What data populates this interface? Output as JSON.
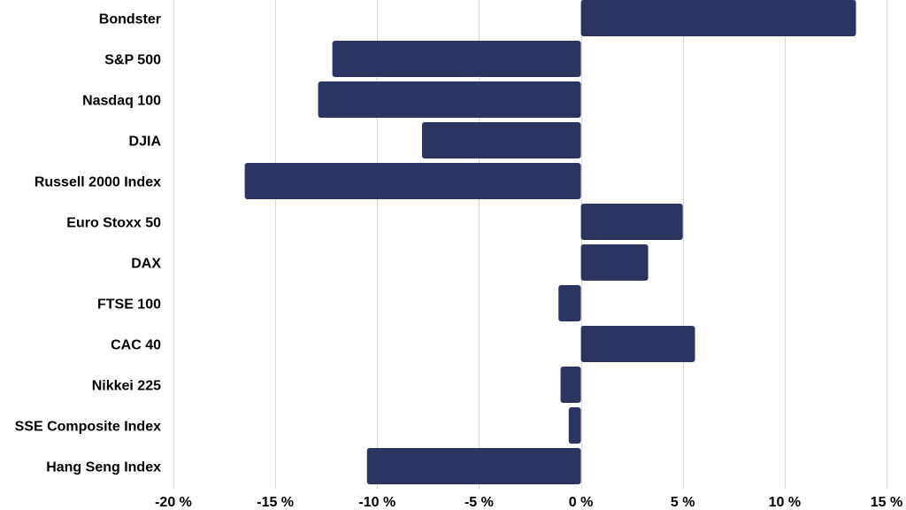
{
  "chart_data": {
    "type": "bar",
    "orientation": "horizontal",
    "categories": [
      "Bondster",
      "S&P 500",
      "Nasdaq 100",
      "DJIA",
      "Russell 2000 Index",
      "Euro Stoxx 50",
      "DAX",
      "FTSE 100",
      "CAC 40",
      "Nikkei 225",
      "SSE Composite Index",
      "Hang Seng Index"
    ],
    "values": [
      13.5,
      -12.2,
      -12.9,
      -7.8,
      -16.5,
      5.0,
      3.3,
      -1.1,
      5.6,
      -1.0,
      -0.6,
      -10.5
    ],
    "xlim": [
      -20,
      15
    ],
    "xticks": [
      -20,
      -15,
      -10,
      -5,
      0,
      5,
      10,
      15
    ],
    "xtick_labels": [
      "-20 %",
      "-15 %",
      "-10 %",
      "-5 %",
      "0 %",
      "5 %",
      "10 %",
      "15 %"
    ],
    "title": "",
    "xlabel": "",
    "ylabel": "",
    "grid": "vertical",
    "legend": "none",
    "bar_color": "#2c3561"
  }
}
